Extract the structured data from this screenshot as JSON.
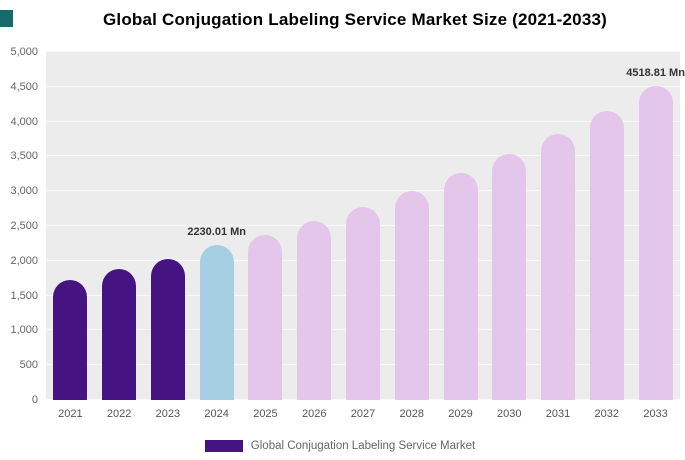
{
  "page": {
    "title": "Global Conjugation Labeling Service Market Size (2021-2033)"
  },
  "legend": {
    "label": "Global Conjugation Labeling Service Market",
    "swatch_color": "#461382"
  },
  "colors": {
    "historical_bar": "#461382",
    "current_bar": "#a6cfe3",
    "forecast_bar": "#e3c6e9",
    "plot_background": "#ececec",
    "corner_accent": "#156b6b"
  },
  "chart_data": {
    "type": "bar",
    "title": "Global Conjugation Labeling Service Market Size (2021-2033)",
    "xlabel": "",
    "ylabel": "",
    "ylim": [
      0,
      5000
    ],
    "grid": true,
    "legend_position": "bottom",
    "categories": [
      "2021",
      "2022",
      "2023",
      "2024",
      "2025",
      "2026",
      "2027",
      "2028",
      "2029",
      "2030",
      "2031",
      "2032",
      "2033"
    ],
    "values": [
      1730,
      1880,
      2030,
      2230.01,
      2370,
      2570,
      2780,
      3000,
      3260,
      3530,
      3820,
      4150,
      4518.81
    ],
    "bar_colors": [
      "#461382",
      "#461382",
      "#461382",
      "#a6cfe3",
      "#e3c6e9",
      "#e3c6e9",
      "#e3c6e9",
      "#e3c6e9",
      "#e3c6e9",
      "#e3c6e9",
      "#e3c6e9",
      "#e3c6e9",
      "#e3c6e9"
    ],
    "yticks": [
      0,
      500,
      1000,
      1500,
      2000,
      2500,
      3000,
      3500,
      4000,
      4500,
      5000
    ],
    "ytick_labels": [
      "0",
      "500",
      "1,000",
      "1,500",
      "2,000",
      "2,500",
      "3,000",
      "3,500",
      "4,000",
      "4,500",
      "5,000"
    ],
    "annotations": [
      {
        "category": "2024",
        "text": "2230.01 Mn"
      },
      {
        "category": "2033",
        "text": "4518.81 Mn"
      }
    ]
  }
}
